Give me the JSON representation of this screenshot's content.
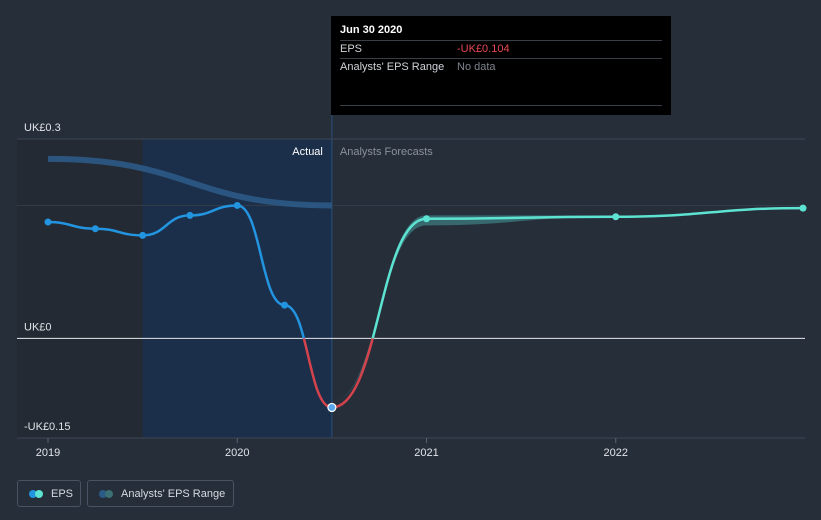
{
  "chart_data": {
    "type": "line",
    "y_axis": {
      "ticks": [
        {
          "value": 0.3,
          "label": "UK£0.3"
        },
        {
          "value": 0,
          "label": "UK£0"
        },
        {
          "value": -0.15,
          "label": "-UK£0.15"
        }
      ],
      "ylim": [
        -0.15,
        0.3
      ]
    },
    "x_axis": {
      "ticks": [
        {
          "value": 2019.0,
          "label": "2019"
        },
        {
          "value": 2020.0,
          "label": "2020"
        },
        {
          "value": 2021.0,
          "label": "2021"
        },
        {
          "value": 2022.0,
          "label": "2022"
        }
      ],
      "xlim": [
        2019.0,
        2023.0
      ]
    },
    "divider_x": 2020.5,
    "section_labels": {
      "actual": "Actual",
      "forecast": "Analysts Forecasts"
    },
    "series": [
      {
        "name": "EPS (Actual)",
        "color": "#2394df",
        "negative_color": "#d4434c",
        "points": [
          [
            2019.0,
            0.175
          ],
          [
            2019.25,
            0.165
          ],
          [
            2019.5,
            0.155
          ],
          [
            2019.75,
            0.185
          ],
          [
            2020.0,
            0.2
          ],
          [
            2020.25,
            0.05
          ],
          [
            2020.5,
            -0.104
          ]
        ]
      },
      {
        "name": "EPS (Forecast)",
        "color": "#5de3d1",
        "negative_color": "#d4434c",
        "points": [
          [
            2020.5,
            -0.104
          ],
          [
            2021.0,
            0.18
          ],
          [
            2022.0,
            0.183
          ],
          [
            2023.0,
            0.196
          ]
        ]
      },
      {
        "name": "Analysts' EPS Range",
        "color": "#3a6f74",
        "upper": [
          [
            2020.5,
            -0.095
          ],
          [
            2021.0,
            0.185
          ],
          [
            2022.0,
            0.185
          ]
        ],
        "lower": [
          [
            2020.5,
            -0.095
          ],
          [
            2021.0,
            0.17
          ],
          [
            2022.0,
            0.183
          ]
        ]
      },
      {
        "name": "Past Industry Trend",
        "color": "#2c5a86",
        "points": [
          [
            2019.0,
            0.27
          ],
          [
            2020.5,
            0.2
          ]
        ]
      }
    ]
  },
  "tooltip": {
    "date": "Jun 30 2020",
    "rows": [
      {
        "label": "EPS",
        "value": "-UK£0.104",
        "color": "#e8474f"
      },
      {
        "label": "Analysts' EPS Range",
        "value": "No data",
        "color": "#7e848d"
      }
    ]
  },
  "legend": {
    "items": [
      {
        "label": "EPS",
        "colors": [
          "#2394df",
          "#5de3d1"
        ]
      },
      {
        "label": "Analysts' EPS Range",
        "colors": [
          "#2c5a86",
          "#3a6f74"
        ]
      }
    ]
  }
}
